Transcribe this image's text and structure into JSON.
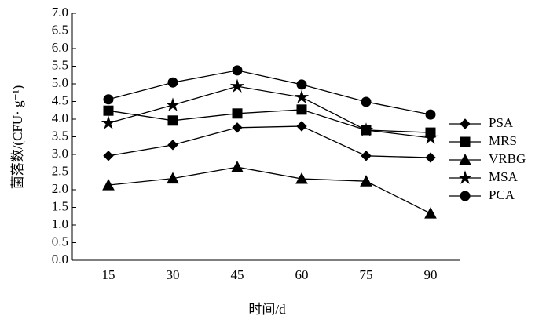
{
  "chart_data": {
    "type": "line",
    "y_label": "菌落数/(CFU· g⁻¹)",
    "x_label": "时间/d",
    "categories": [
      "15",
      "30",
      "45",
      "60",
      "75",
      "90"
    ],
    "series": [
      {
        "name": "PSA",
        "color": "#000000",
        "marker": "diamond",
        "values": [
          2.96,
          3.27,
          3.76,
          3.8,
          2.96,
          2.91
        ]
      },
      {
        "name": "MRS",
        "color": "#000000",
        "marker": "square",
        "values": [
          4.24,
          3.96,
          4.16,
          4.27,
          3.69,
          3.62
        ]
      },
      {
        "name": "VRBG",
        "color": "#000000",
        "marker": "triangle",
        "values": [
          2.13,
          2.32,
          2.64,
          2.31,
          2.24,
          1.33
        ]
      },
      {
        "name": "MSA",
        "color": "#000000",
        "marker": "star",
        "values": [
          3.89,
          4.4,
          4.93,
          4.62,
          3.69,
          3.47
        ]
      },
      {
        "name": "PCA",
        "color": "#000000",
        "marker": "circle",
        "values": [
          4.56,
          5.04,
          5.38,
          4.98,
          4.49,
          4.13
        ]
      }
    ],
    "ylim": [
      0,
      7
    ],
    "yticks": [
      {
        "value": 0,
        "label": "0.0"
      },
      {
        "value": 0.5,
        "label": "0.5"
      },
      {
        "value": 1,
        "label": "1.0"
      },
      {
        "value": 1.5,
        "label": "1.5"
      },
      {
        "value": 2,
        "label": "2.0"
      },
      {
        "value": 2.5,
        "label": "2.5"
      },
      {
        "value": 3,
        "label": "3.0"
      },
      {
        "value": 3.5,
        "label": "3.5"
      },
      {
        "value": 4,
        "label": "4.0"
      },
      {
        "value": 4.5,
        "label": "4.5"
      },
      {
        "value": 5,
        "label": "5.0"
      },
      {
        "value": 5.5,
        "label": "5.5"
      },
      {
        "value": 6,
        "label": "6.0"
      },
      {
        "value": 6.5,
        "label": "6.5"
      },
      {
        "value": 7,
        "label": "7.0"
      }
    ],
    "grid": false,
    "legend": "right"
  }
}
